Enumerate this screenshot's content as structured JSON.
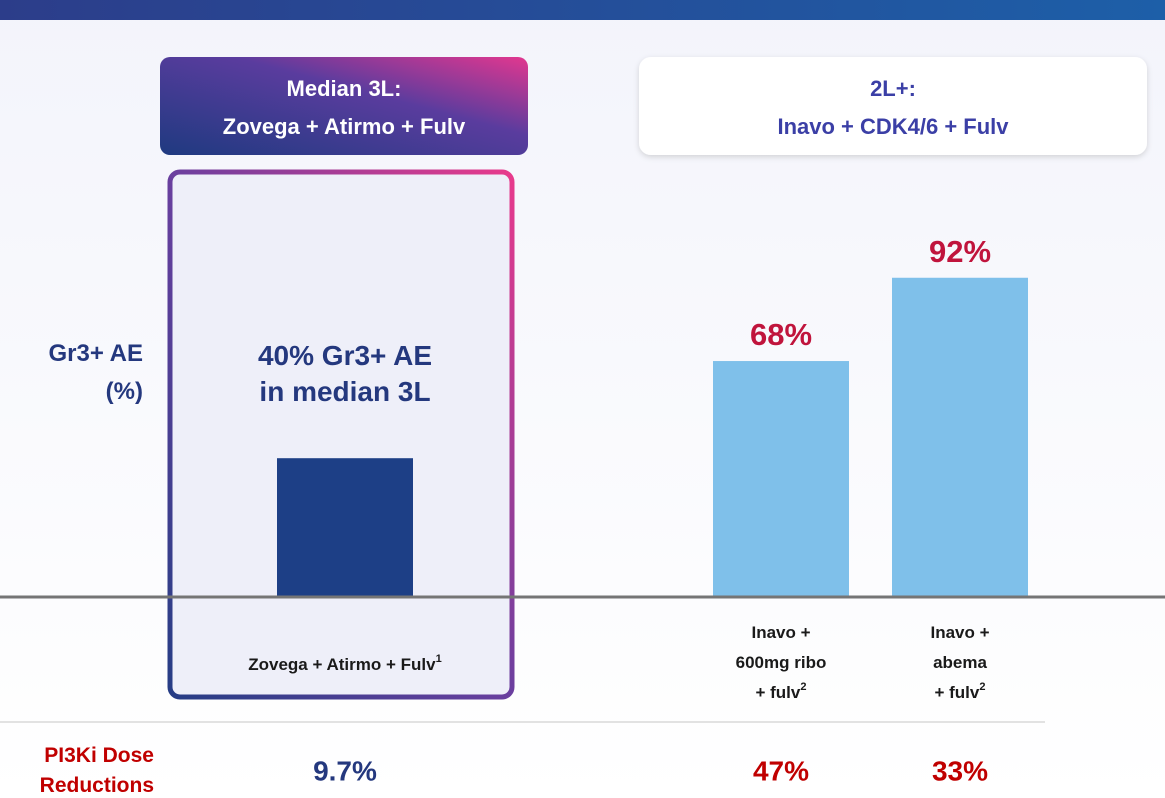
{
  "chart_data": {
    "type": "bar",
    "ylabel": "Gr3+ AE\n(%)",
    "groups": [
      {
        "title": "Median 3L:\nZovega + Atirmo + Fulv"
      },
      {
        "title": "2L+:\nInavo + CDK4/6 + Fulv"
      }
    ],
    "categories": [
      "Zovega + Atirmo + Fulv",
      "Inavo +\n600mg ribo\n+ fulv",
      "Inavo +\nabema\n+ fulv"
    ],
    "category_notes": [
      "1",
      "2",
      "2"
    ],
    "values": [
      40,
      68,
      92
    ],
    "value_labels": [
      "40% Gr3+ AE\nin median 3L",
      "68%",
      "92%"
    ],
    "colors": [
      "#1d3f86",
      "#7fc0ea",
      "#7fc0ea"
    ],
    "label_colors": [
      "#24387e",
      "#c0143c",
      "#c0143c"
    ],
    "ylim": [
      0,
      100
    ],
    "dose_reductions": {
      "label": "PI3Ki Dose\nReductions",
      "values": [
        "9.7%",
        "47%",
        "33%"
      ],
      "colors": [
        "#24387e",
        "#c00000",
        "#c00000"
      ]
    }
  }
}
